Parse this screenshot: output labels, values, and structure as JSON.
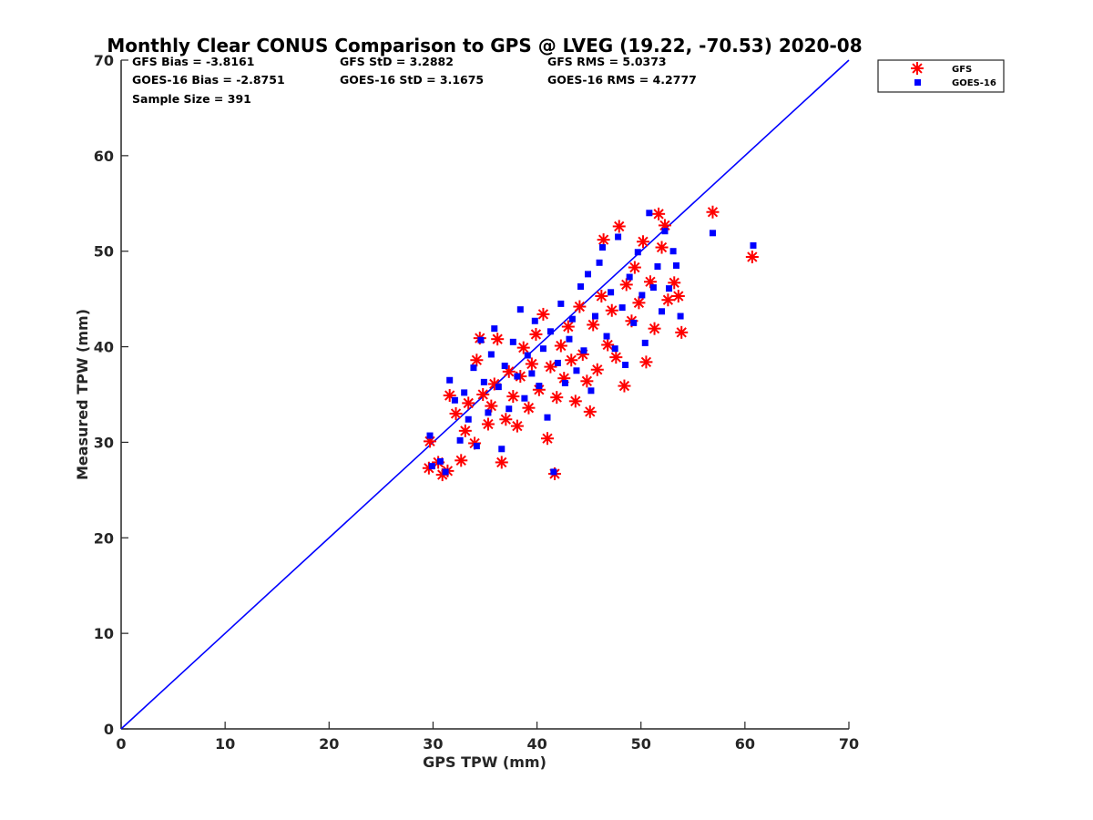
{
  "chart_data": {
    "type": "scatter",
    "title": "Monthly Clear CONUS Comparison to GPS @ LVEG (19.22, -70.53) 2020-08",
    "xlabel": "GPS TPW (mm)",
    "ylabel": "Measured TPW (mm)",
    "xlim": [
      0,
      70
    ],
    "ylim": [
      0,
      70
    ],
    "xticks": [
      "0",
      "10",
      "20",
      "30",
      "40",
      "50",
      "60",
      "70"
    ],
    "yticks": [
      "0",
      "10",
      "20",
      "30",
      "40",
      "50",
      "60",
      "70"
    ],
    "grid": false,
    "legend_position": "top-right, outside axes",
    "stats": [
      [
        "GFS Bias = -3.8161",
        "GFS StD = 3.2882",
        "GFS RMS = 5.0373"
      ],
      [
        "GOES-16 Bias = -2.8751",
        "GOES-16 StD = 3.1675",
        "GOES-16 RMS = 4.2777"
      ],
      [
        "Sample Size = 391"
      ]
    ],
    "reference_line": {
      "x": [
        0,
        70
      ],
      "y": [
        0,
        70
      ],
      "color": "#0000ff"
    },
    "series": [
      {
        "name": "GFS",
        "marker": "asterisk",
        "color": "#ff0000",
        "points": [
          [
            29.6,
            27.3
          ],
          [
            29.7,
            30.1
          ],
          [
            30.5,
            27.9
          ],
          [
            30.9,
            26.6
          ],
          [
            31.4,
            27.0
          ],
          [
            31.6,
            34.9
          ],
          [
            32.2,
            33.0
          ],
          [
            32.7,
            28.1
          ],
          [
            33.1,
            31.2
          ],
          [
            33.4,
            34.1
          ],
          [
            34.0,
            29.9
          ],
          [
            34.2,
            38.6
          ],
          [
            34.5,
            40.9
          ],
          [
            34.8,
            35.0
          ],
          [
            35.3,
            31.9
          ],
          [
            35.6,
            33.8
          ],
          [
            35.9,
            36.1
          ],
          [
            36.2,
            40.8
          ],
          [
            36.6,
            27.9
          ],
          [
            37.0,
            32.4
          ],
          [
            37.3,
            37.4
          ],
          [
            37.7,
            34.8
          ],
          [
            38.1,
            31.7
          ],
          [
            38.4,
            36.9
          ],
          [
            38.7,
            39.9
          ],
          [
            39.2,
            33.6
          ],
          [
            39.5,
            38.2
          ],
          [
            39.9,
            41.3
          ],
          [
            40.2,
            35.5
          ],
          [
            40.6,
            43.4
          ],
          [
            41.0,
            30.4
          ],
          [
            41.3,
            37.9
          ],
          [
            41.7,
            26.7
          ],
          [
            41.9,
            34.7
          ],
          [
            42.3,
            40.1
          ],
          [
            42.6,
            36.7
          ],
          [
            43.0,
            42.1
          ],
          [
            43.3,
            38.6
          ],
          [
            43.7,
            34.3
          ],
          [
            44.1,
            44.2
          ],
          [
            44.4,
            39.2
          ],
          [
            44.8,
            36.4
          ],
          [
            45.1,
            33.2
          ],
          [
            45.4,
            42.3
          ],
          [
            45.8,
            37.6
          ],
          [
            46.2,
            45.3
          ],
          [
            46.4,
            51.2
          ],
          [
            46.8,
            40.2
          ],
          [
            47.2,
            43.8
          ],
          [
            47.6,
            38.9
          ],
          [
            47.9,
            52.6
          ],
          [
            48.4,
            35.9
          ],
          [
            48.6,
            46.5
          ],
          [
            49.1,
            42.7
          ],
          [
            49.4,
            48.3
          ],
          [
            49.8,
            44.6
          ],
          [
            50.2,
            51.0
          ],
          [
            50.5,
            38.4
          ],
          [
            50.9,
            46.8
          ],
          [
            51.3,
            41.9
          ],
          [
            51.7,
            53.9
          ],
          [
            52.0,
            50.4
          ],
          [
            52.3,
            52.7
          ],
          [
            52.6,
            44.9
          ],
          [
            53.2,
            46.7
          ],
          [
            53.6,
            45.3
          ],
          [
            53.9,
            41.5
          ],
          [
            56.9,
            54.1
          ],
          [
            60.7,
            49.4
          ]
        ]
      },
      {
        "name": "GOES-16",
        "marker": "square",
        "color": "#0000ff",
        "points": [
          [
            29.7,
            30.7
          ],
          [
            29.9,
            27.5
          ],
          [
            30.7,
            28.0
          ],
          [
            31.2,
            26.9
          ],
          [
            31.6,
            36.5
          ],
          [
            32.1,
            34.4
          ],
          [
            32.6,
            30.2
          ],
          [
            33.0,
            35.2
          ],
          [
            33.4,
            32.4
          ],
          [
            33.9,
            37.8
          ],
          [
            34.2,
            29.6
          ],
          [
            34.6,
            40.7
          ],
          [
            34.9,
            36.3
          ],
          [
            35.3,
            33.1
          ],
          [
            35.6,
            39.2
          ],
          [
            35.9,
            41.9
          ],
          [
            36.3,
            35.8
          ],
          [
            36.6,
            29.3
          ],
          [
            36.9,
            38.0
          ],
          [
            37.3,
            33.5
          ],
          [
            37.7,
            40.5
          ],
          [
            38.1,
            36.9
          ],
          [
            38.4,
            43.9
          ],
          [
            38.8,
            34.6
          ],
          [
            39.1,
            39.1
          ],
          [
            39.5,
            37.2
          ],
          [
            39.8,
            42.7
          ],
          [
            40.2,
            35.9
          ],
          [
            40.6,
            39.8
          ],
          [
            41.0,
            32.6
          ],
          [
            41.3,
            41.6
          ],
          [
            41.6,
            26.9
          ],
          [
            42.0,
            38.3
          ],
          [
            42.3,
            44.5
          ],
          [
            42.7,
            36.2
          ],
          [
            43.1,
            40.8
          ],
          [
            43.4,
            42.9
          ],
          [
            43.8,
            37.5
          ],
          [
            44.2,
            46.3
          ],
          [
            44.5,
            39.6
          ],
          [
            44.9,
            47.6
          ],
          [
            45.2,
            35.4
          ],
          [
            45.6,
            43.2
          ],
          [
            46.0,
            48.8
          ],
          [
            46.3,
            50.4
          ],
          [
            46.7,
            41.1
          ],
          [
            47.1,
            45.7
          ],
          [
            47.5,
            39.8
          ],
          [
            47.8,
            51.5
          ],
          [
            48.2,
            44.1
          ],
          [
            48.5,
            38.1
          ],
          [
            48.9,
            47.3
          ],
          [
            49.3,
            42.5
          ],
          [
            49.7,
            49.9
          ],
          [
            50.1,
            45.4
          ],
          [
            50.4,
            40.4
          ],
          [
            50.8,
            54.0
          ],
          [
            51.2,
            46.2
          ],
          [
            51.6,
            48.4
          ],
          [
            52.0,
            43.7
          ],
          [
            52.3,
            52.1
          ],
          [
            52.7,
            46.1
          ],
          [
            53.1,
            50.0
          ],
          [
            53.4,
            48.5
          ],
          [
            53.8,
            43.2
          ],
          [
            56.9,
            51.9
          ],
          [
            60.8,
            50.6
          ]
        ]
      }
    ]
  }
}
